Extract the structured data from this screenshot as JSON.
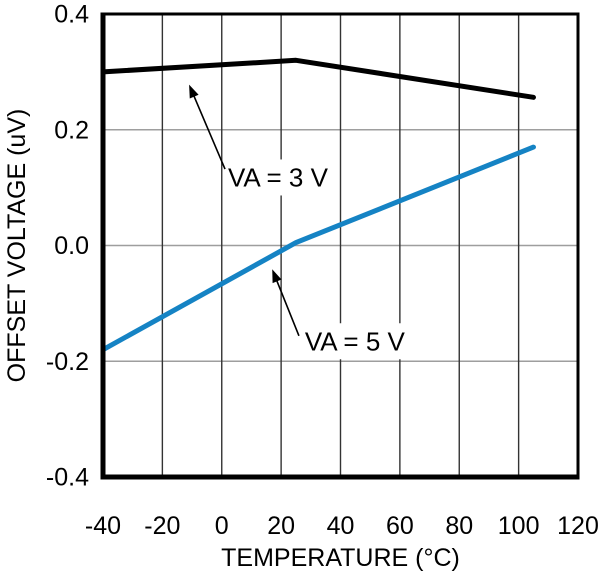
{
  "page": {
    "background": "#ffffff"
  },
  "chart_data": {
    "type": "line",
    "title": "",
    "xlabel": "TEMPERATURE (°C)",
    "ylabel": "OFFSET VOLTAGE (uV)",
    "xlim": [
      -40,
      120
    ],
    "ylim": [
      -0.4,
      0.4
    ],
    "grid": true,
    "legend_position": "none",
    "x_ticks": [
      -40,
      -20,
      0,
      20,
      40,
      60,
      80,
      100,
      120
    ],
    "x_tick_labels": [
      "-40",
      "-20",
      "0",
      "20",
      "40",
      "60",
      "80",
      "100",
      "120"
    ],
    "y_ticks": [
      0.4,
      0.2,
      0.0,
      -0.2,
      -0.4
    ],
    "y_tick_labels": [
      "0.4",
      "0.2",
      "0.0",
      "-0.2",
      "-0.4"
    ],
    "series": [
      {
        "name": "VA = 3 V",
        "color": "#000000",
        "points": [
          [
            -40,
            0.3
          ],
          [
            25,
            0.32
          ],
          [
            105,
            0.256
          ]
        ]
      },
      {
        "name": "VA = 5 V",
        "color": "#1583C4",
        "points": [
          [
            -40,
            -0.18
          ],
          [
            25,
            0.005
          ],
          [
            105,
            0.17
          ]
        ]
      }
    ],
    "annotations": [
      {
        "text": "VA = 3 V",
        "arrow_tip": [
          -11,
          0.278
        ],
        "arrow_tail": [
          1.1,
          0.132
        ],
        "label_pos": [
          2.1,
          0.102
        ]
      },
      {
        "text": "VA = 5 V",
        "arrow_tip": [
          17,
          -0.041
        ],
        "arrow_tail": [
          26,
          -0.156
        ],
        "label_pos": [
          28,
          -0.181
        ]
      }
    ],
    "colors": {
      "frame": "#000000",
      "grid_horizontal": "#9e9e9e",
      "grid_vertical": "#333333",
      "background": "#ffffff",
      "text": "#000000"
    }
  }
}
